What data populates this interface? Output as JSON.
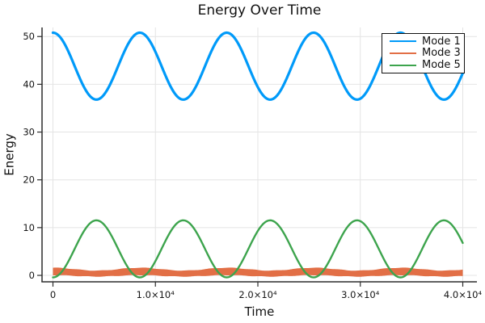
{
  "title": "Energy Over Time",
  "axes": {
    "xlabel": "Time",
    "ylabel": "Energy"
  },
  "legend": {
    "entries": [
      {
        "label": "Mode 1",
        "color": "#009af9"
      },
      {
        "label": "Mode 3",
        "color": "#e26f46"
      },
      {
        "label": "Mode 5",
        "color": "#3da44d"
      }
    ]
  },
  "chart_data": {
    "type": "line",
    "title": "Energy Over Time",
    "xlabel": "Time",
    "ylabel": "Energy",
    "xlim": [
      -1065,
      41380
    ],
    "ylim": [
      -1.35,
      51.9
    ],
    "t_range": [
      0,
      40000
    ],
    "xticks": {
      "values": [
        0,
        10000,
        20000,
        30000,
        40000
      ],
      "labels": [
        "0",
        "1.0×10⁴",
        "2.0×10⁴",
        "3.0×10⁴",
        "4.0×10⁴"
      ]
    },
    "yticks": {
      "values": [
        0,
        10,
        20,
        30,
        40,
        50
      ],
      "labels": [
        "0",
        "10",
        "20",
        "30",
        "40",
        "50"
      ]
    },
    "grid": true,
    "legend_position": "top-right",
    "frame": "left-bottom-spines",
    "colors": {
      "grid": "#e4e4e4",
      "axis": "#2d2d2d",
      "text": "#141414"
    },
    "series": [
      {
        "name": "Mode 1",
        "color": "#009af9",
        "style": "line",
        "linewidth": 3.2,
        "model": {
          "kind": "cosine",
          "mean": 43.8,
          "amplitude": 7.0,
          "period": 8480
        },
        "keypoints": {
          "t": [
            0,
            4240,
            8480,
            12720,
            16960,
            21200,
            25440,
            29680,
            33920,
            38160,
            40000
          ],
          "E": [
            50.8,
            36.8,
            50.8,
            36.8,
            50.8,
            36.8,
            50.8,
            36.8,
            50.8,
            36.8,
            42.3
          ]
        }
      },
      {
        "name": "Mode 3",
        "color": "#e26f46",
        "style": "band",
        "model": {
          "kind": "band",
          "upper_mean": 1.3,
          "upper_amp": 0.3,
          "lower_mean": -0.1,
          "lower_amp": 0.15,
          "period": 8480,
          "ripple_amp": 0.05,
          "ripple_period": 2120
        },
        "keypoints": {
          "t": [
            0,
            4240,
            8480,
            12720,
            16960,
            21200,
            25440,
            29680,
            33920,
            38160,
            40000
          ],
          "E_upper": [
            1.6,
            1.0,
            1.6,
            1.0,
            1.6,
            1.0,
            1.6,
            1.0,
            1.6,
            1.0,
            1.24
          ],
          "E_lower": [
            0.05,
            -0.25,
            0.05,
            -0.25,
            0.05,
            -0.25,
            0.05,
            -0.25,
            0.05,
            -0.25,
            -0.13
          ]
        },
        "note": "rapid small-amplitude oscillation rendered as a solid band around E≈0.6"
      },
      {
        "name": "Mode 5",
        "color": "#3da44d",
        "style": "line",
        "linewidth": 2.4,
        "model": {
          "kind": "cosine",
          "mean": 5.55,
          "amplitude": -5.97,
          "period": 8480
        },
        "keypoints": {
          "t": [
            0,
            4240,
            8480,
            12720,
            16960,
            21200,
            25440,
            29680,
            33920,
            38160,
            40000
          ],
          "E": [
            -0.4,
            11.5,
            -0.4,
            11.5,
            -0.4,
            11.5,
            -0.4,
            11.5,
            -0.4,
            11.5,
            6.8
          ]
        }
      }
    ]
  }
}
